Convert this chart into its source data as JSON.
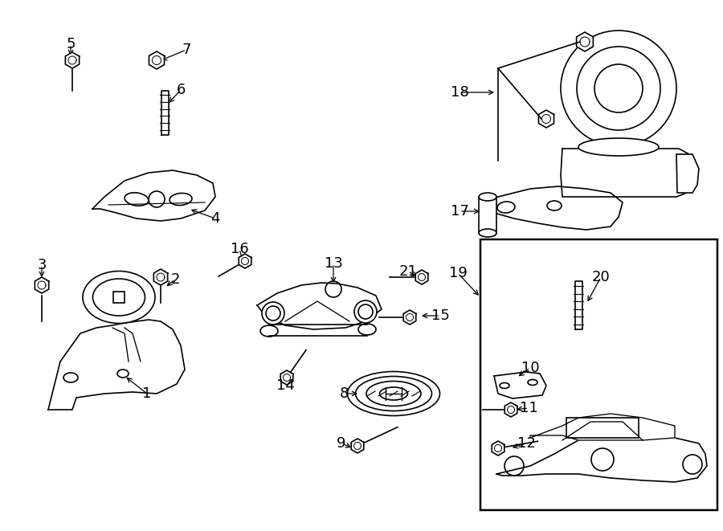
{
  "bg_color": "#ffffff",
  "line_color": "#000000",
  "fig_width": 9.0,
  "fig_height": 6.61,
  "dpi": 100,
  "label_fontsize": 13,
  "lw": 1.2
}
